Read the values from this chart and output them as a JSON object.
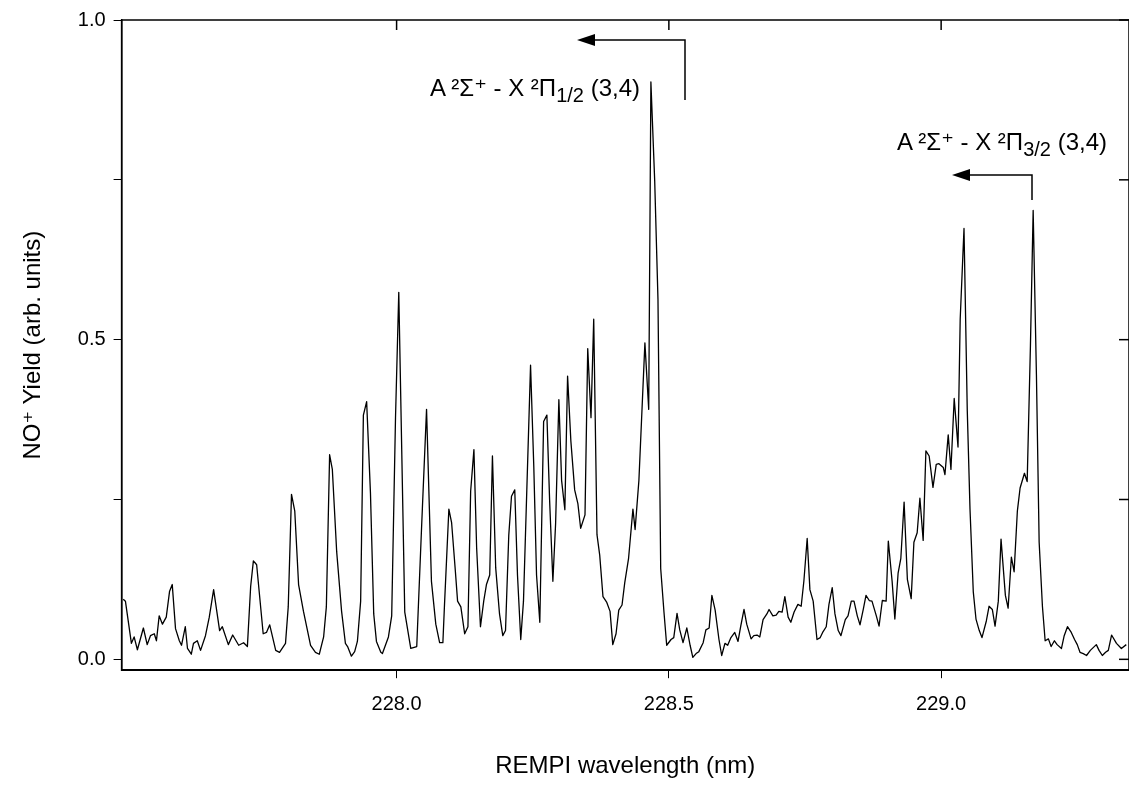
{
  "chart_data": {
    "type": "line",
    "xlabel": "REMPI wavelength (nm)",
    "ylabel": "NO⁺ Yield (arb. units)",
    "xlim": [
      227.495,
      229.345
    ],
    "xticks": [
      {
        "value": 228,
        "label": "228.0"
      },
      228.5,
      {
        "value": 229,
        "label": "229.0"
      }
    ],
    "ylim": [
      -0.017,
      1.0
    ],
    "yticks": [
      {
        "value": 0,
        "label": "0.0"
      },
      {
        "value": 0.25,
        "label": null
      },
      0.5,
      {
        "value": 0.75,
        "label": null
      },
      {
        "value": 1,
        "label": "1.0"
      }
    ],
    "annotations": [
      "A ²Σ⁺ - X ²Π$_{1/2}$ (3,4)",
      "A ²Σ⁺ - X ²Π$_{3/2}$ (3,4)"
    ],
    "series": [
      {
        "color": "#000000",
        "x": [
          227.498,
          227.502,
          227.513,
          227.518,
          227.524,
          227.535,
          227.542,
          227.548,
          227.555,
          227.559,
          227.564,
          227.57,
          227.577,
          227.583,
          227.588,
          227.594,
          227.601,
          227.605,
          227.612,
          227.616,
          227.623,
          227.627,
          227.634,
          227.64,
          227.649,
          227.656,
          227.664,
          227.675,
          227.68,
          227.691,
          227.699,
          227.71,
          227.719,
          227.726,
          227.732,
          227.737,
          227.743,
          227.755,
          227.761,
          227.767,
          227.778,
          227.785,
          227.796,
          227.801,
          227.807,
          227.813,
          227.82,
          227.829,
          227.842,
          227.851,
          227.858,
          227.866,
          227.871,
          227.877,
          227.882,
          227.89,
          227.899,
          227.906,
          227.91,
          227.917,
          227.923,
          227.928,
          227.934,
          227.939,
          227.945,
          227.952,
          227.958,
          227.963,
          227.971,
          227.974,
          227.985,
          227.991,
          227.998,
          228.004,
          228.015,
          228.026,
          228.037,
          228.046,
          228.055,
          228.064,
          228.072,
          228.079,
          228.085,
          228.088,
          228.096,
          228.101,
          228.108,
          228.112,
          228.118,
          228.125,
          228.131,
          228.136,
          228.142,
          228.147,
          228.154,
          228.16,
          228.165,
          228.171,
          228.176,
          228.182,
          228.189,
          228.195,
          228.2,
          228.206,
          228.211,
          228.217,
          228.222,
          228.228,
          228.233,
          228.246,
          228.252,
          228.257,
          228.263,
          228.27,
          228.276,
          228.281,
          228.287,
          228.292,
          228.298,
          228.303,
          228.309,
          228.314,
          228.32,
          228.327,
          228.333,
          228.338,
          228.346,
          228.351,
          228.357,
          228.362,
          228.368,
          228.373,
          228.379,
          228.386,
          228.392,
          228.397,
          228.403,
          228.408,
          228.414,
          228.419,
          228.426,
          228.434,
          228.438,
          228.445,
          228.45,
          228.456,
          228.463,
          228.467,
          228.474,
          228.48,
          228.485,
          228.491,
          228.496,
          228.504,
          228.509,
          228.515,
          228.52,
          228.526,
          228.533,
          228.539,
          228.544,
          228.55,
          228.555,
          228.563,
          228.568,
          228.574,
          228.579,
          228.585,
          228.592,
          228.597,
          228.603,
          228.608,
          228.614,
          228.621,
          228.627,
          228.632,
          228.638,
          228.643,
          228.651,
          228.656,
          228.662,
          228.667,
          228.673,
          228.68,
          228.684,
          228.691,
          228.697,
          228.702,
          228.708,
          228.713,
          228.719,
          228.724,
          228.73,
          228.737,
          228.743,
          228.748,
          228.754,
          228.759,
          228.765,
          228.772,
          228.778,
          228.783,
          228.789,
          228.794,
          228.8,
          228.805,
          228.811,
          228.816,
          228.824,
          228.829,
          228.835,
          228.84,
          228.846,
          228.851,
          228.857,
          228.862,
          228.868,
          228.873,
          228.881,
          228.886,
          228.892,
          228.899,
          228.903,
          228.91,
          228.915,
          228.921,
          228.926,
          228.932,
          228.938,
          228.945,
          228.95,
          228.956,
          228.961,
          228.967,
          228.972,
          228.978,
          228.985,
          228.991,
          228.996,
          229.004,
          229.007,
          229.013,
          229.018,
          229.024,
          229.031,
          229.035,
          229.042,
          229.048,
          229.053,
          229.059,
          229.064,
          229.07,
          229.075,
          229.083,
          229.088,
          229.094,
          229.099,
          229.105,
          229.11,
          229.118,
          229.123,
          229.129,
          229.134,
          229.14,
          229.145,
          229.153,
          229.158,
          229.164,
          229.169,
          229.175,
          229.18,
          229.186,
          229.191,
          229.197,
          229.202,
          229.208,
          229.213,
          229.221,
          229.226,
          229.232,
          229.239,
          229.245,
          229.25,
          229.255,
          229.261,
          229.267,
          229.274,
          229.285,
          229.29,
          229.296,
          229.302,
          229.307,
          229.313,
          229.322,
          229.331,
          229.34
        ],
        "values": [
          0.094,
          0.091,
          0.025,
          0.035,
          0.015,
          0.049,
          0.023,
          0.037,
          0.04,
          0.029,
          0.068,
          0.055,
          0.066,
          0.106,
          0.117,
          0.048,
          0.029,
          0.022,
          0.051,
          0.017,
          0.008,
          0.025,
          0.029,
          0.014,
          0.037,
          0.066,
          0.109,
          0.045,
          0.051,
          0.023,
          0.038,
          0.022,
          0.026,
          0.02,
          0.114,
          0.154,
          0.148,
          0.04,
          0.042,
          0.054,
          0.014,
          0.011,
          0.025,
          0.082,
          0.258,
          0.232,
          0.117,
          0.075,
          0.022,
          0.011,
          0.008,
          0.035,
          0.082,
          0.32,
          0.297,
          0.168,
          0.075,
          0.025,
          0.02,
          0.005,
          0.012,
          0.028,
          0.091,
          0.382,
          0.403,
          0.26,
          0.071,
          0.028,
          0.011,
          0.009,
          0.035,
          0.068,
          0.378,
          0.574,
          0.074,
          0.017,
          0.02,
          0.209,
          0.391,
          0.122,
          0.055,
          0.026,
          0.026,
          0.086,
          0.235,
          0.214,
          0.137,
          0.091,
          0.082,
          0.04,
          0.051,
          0.263,
          0.328,
          0.174,
          0.051,
          0.091,
          0.117,
          0.132,
          0.318,
          0.143,
          0.071,
          0.037,
          0.045,
          0.194,
          0.255,
          0.265,
          0.132,
          0.031,
          0.091,
          0.46,
          0.3,
          0.132,
          0.058,
          0.372,
          0.382,
          0.249,
          0.122,
          0.212,
          0.406,
          0.28,
          0.234,
          0.443,
          0.342,
          0.265,
          0.243,
          0.205,
          0.226,
          0.486,
          0.378,
          0.532,
          0.195,
          0.163,
          0.098,
          0.089,
          0.075,
          0.023,
          0.04,
          0.077,
          0.085,
          0.12,
          0.158,
          0.235,
          0.203,
          0.28,
          0.378,
          0.495,
          0.391,
          0.903,
          0.748,
          0.563,
          0.142,
          0.074,
          0.022,
          0.031,
          0.034,
          0.072,
          0.046,
          0.026,
          0.049,
          0.022,
          0.003,
          0.009,
          0.012,
          0.026,
          0.046,
          0.049,
          0.1,
          0.077,
          0.031,
          0.006,
          0.025,
          0.022,
          0.034,
          0.042,
          0.028,
          0.052,
          0.078,
          0.055,
          0.032,
          0.037,
          0.038,
          0.035,
          0.062,
          0.071,
          0.078,
          0.068,
          0.069,
          0.075,
          0.074,
          0.098,
          0.066,
          0.058,
          0.074,
          0.086,
          0.083,
          0.123,
          0.189,
          0.109,
          0.091,
          0.031,
          0.034,
          0.043,
          0.051,
          0.086,
          0.112,
          0.071,
          0.045,
          0.037,
          0.062,
          0.068,
          0.091,
          0.091,
          0.068,
          0.054,
          0.078,
          0.1,
          0.092,
          0.091,
          0.068,
          0.052,
          0.092,
          0.091,
          0.185,
          0.122,
          0.063,
          0.135,
          0.158,
          0.246,
          0.125,
          0.095,
          0.183,
          0.198,
          0.252,
          0.186,
          0.326,
          0.318,
          0.269,
          0.305,
          0.306,
          0.3,
          0.289,
          0.351,
          0.297,
          0.408,
          0.332,
          0.532,
          0.674,
          0.389,
          0.235,
          0.106,
          0.063,
          0.045,
          0.034,
          0.06,
          0.083,
          0.078,
          0.052,
          0.091,
          0.188,
          0.1,
          0.08,
          0.16,
          0.137,
          0.232,
          0.268,
          0.291,
          0.278,
          0.491,
          0.702,
          0.445,
          0.183,
          0.083,
          0.029,
          0.032,
          0.02,
          0.029,
          0.023,
          0.017,
          0.037,
          0.051,
          0.042,
          0.031,
          0.023,
          0.011,
          0.009,
          0.006,
          0.014,
          0.023,
          0.014,
          0.006,
          0.011,
          0.014,
          0.038,
          0.025,
          0.017,
          0.023
        ]
      }
    ]
  }
}
